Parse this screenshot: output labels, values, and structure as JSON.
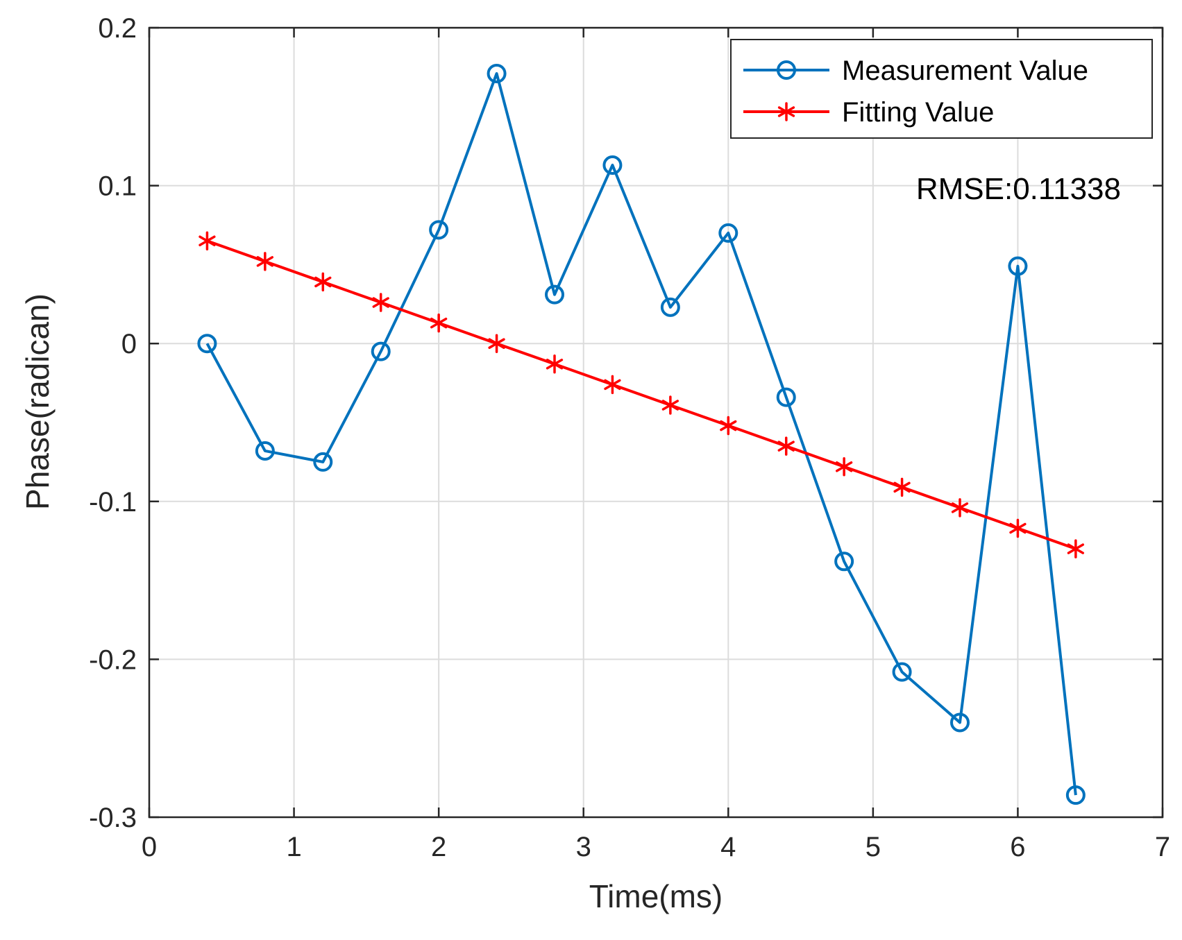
{
  "chart_data": {
    "type": "line",
    "xlabel": "Time(ms)",
    "ylabel": "Phase(radican)",
    "xlim": [
      0,
      7
    ],
    "ylim": [
      -0.3,
      0.2
    ],
    "xticks": [
      0,
      1,
      2,
      3,
      4,
      5,
      6,
      7
    ],
    "xtick_labels": [
      "0",
      "1",
      "2",
      "3",
      "4",
      "5",
      "6",
      "7"
    ],
    "yticks": [
      0.2,
      0.1,
      0,
      -0.1,
      -0.2,
      -0.3
    ],
    "ytick_labels": [
      "0.2",
      "0.1",
      "0",
      "-0.1",
      "-0.2",
      "-0.3"
    ],
    "grid": true,
    "legend_position": "top-right",
    "annotation": "RMSE:0.11338",
    "series": [
      {
        "name": "Measurement Value",
        "color": "#0072BD",
        "marker": "circle",
        "x": [
          0.4,
          0.8,
          1.2,
          1.6,
          2.0,
          2.4,
          2.8,
          3.2,
          3.6,
          4.0,
          4.4,
          4.8,
          5.2,
          5.6,
          6.0,
          6.4
        ],
        "y": [
          0.0,
          -0.068,
          -0.075,
          -0.005,
          0.072,
          0.171,
          0.031,
          0.113,
          0.023,
          0.07,
          -0.034,
          -0.138,
          -0.208,
          -0.24,
          0.049,
          -0.286
        ]
      },
      {
        "name": "Fitting Value",
        "color": "#FF0000",
        "marker": "asterisk",
        "x": [
          0.4,
          0.8,
          1.2,
          1.6,
          2.0,
          2.4,
          2.8,
          3.2,
          3.6,
          4.0,
          4.4,
          4.8,
          5.2,
          5.6,
          6.0,
          6.4
        ],
        "y": [
          0.065,
          0.052,
          0.039,
          0.026,
          0.013,
          0.0,
          -0.013,
          -0.026,
          -0.039,
          -0.052,
          -0.065,
          -0.078,
          -0.091,
          -0.104,
          -0.117,
          -0.13
        ]
      }
    ]
  }
}
